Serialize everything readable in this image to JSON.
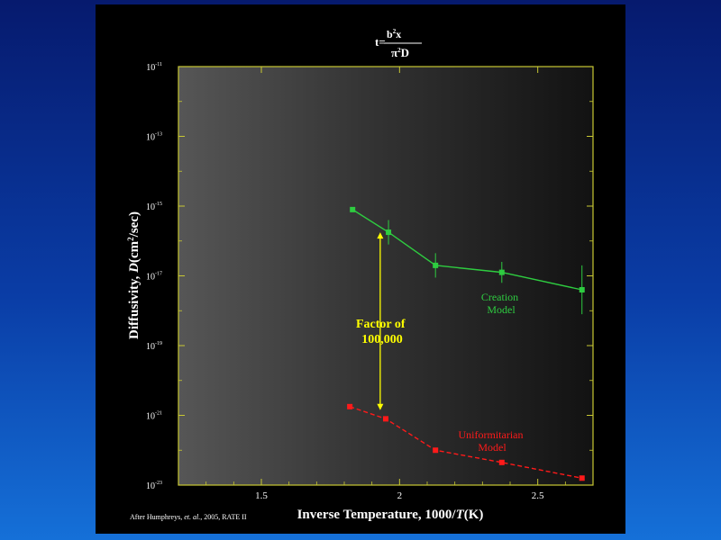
{
  "formula": {
    "lhs": "t=",
    "numerator": "b",
    "numerator_sup": "2",
    "numerator_tail": "x",
    "denominator": "π",
    "denominator_sup": "2",
    "denominator_tail": "D"
  },
  "citation": {
    "before": "After Humphreys, ",
    "italic": "et. al.",
    "after": ", 2005, RATE II"
  },
  "colors": {
    "creation": "#2ecc40",
    "uniformitarian": "#ff1a1a",
    "arrow": "#ffff00",
    "frame": "#c8c832"
  },
  "chart_data": {
    "type": "line",
    "title": "",
    "xlabel": "Inverse Temperature, 1000/T(K)",
    "xlabel_parts": {
      "main": "Inverse Temperature, 1000/",
      "italic": "T",
      "tail": "(K)"
    },
    "ylabel": "Diffusivity, D(cm²/sec)",
    "ylabel_parts": {
      "main": "Diffusivity, ",
      "italic": "D",
      "tail": "(cm",
      "sup": "2",
      "end": "/sec)"
    },
    "xlim": [
      1.2,
      2.7
    ],
    "x_ticks": [
      "1.5",
      "2",
      "2.5"
    ],
    "x_tick_values": [
      1.5,
      2,
      2.5
    ],
    "y_scale": "log",
    "ylim": [
      -23,
      -11
    ],
    "y_ticks": [
      {
        "base": "10",
        "exp": "-11",
        "value": -11
      },
      {
        "base": "10",
        "exp": "-13",
        "value": -13
      },
      {
        "base": "10",
        "exp": "-15",
        "value": -15
      },
      {
        "base": "10",
        "exp": "-17",
        "value": -17
      },
      {
        "base": "10",
        "exp": "-19",
        "value": -19
      },
      {
        "base": "10",
        "exp": "-21",
        "value": -21
      },
      {
        "base": "10",
        "exp": "-23",
        "value": -23
      }
    ],
    "grid": false,
    "series": [
      {
        "name": "Creation Model",
        "label_lines": [
          "Creation",
          "Model"
        ],
        "line_style": "solid",
        "points": [
          {
            "x": 1.83,
            "log10_y": -15.1,
            "err": 0
          },
          {
            "x": 1.96,
            "log10_y": -15.75,
            "err": 0.35
          },
          {
            "x": 2.13,
            "log10_y": -16.7,
            "err": 0.35
          },
          {
            "x": 2.37,
            "log10_y": -16.9,
            "err": 0.3
          },
          {
            "x": 2.66,
            "log10_y": -17.4,
            "err": 0.7
          }
        ]
      },
      {
        "name": "Uniformitarian Model",
        "label_lines": [
          "Uniformitarian",
          "Model"
        ],
        "line_style": "dashed",
        "points": [
          {
            "x": 1.82,
            "log10_y": -20.75,
            "err": 0
          },
          {
            "x": 1.95,
            "log10_y": -21.1,
            "err": 0
          },
          {
            "x": 2.13,
            "log10_y": -22.0,
            "err": 0
          },
          {
            "x": 2.37,
            "log10_y": -22.35,
            "err": 0
          },
          {
            "x": 2.66,
            "log10_y": -22.8,
            "err": 0
          }
        ]
      }
    ],
    "annotation": {
      "lines": [
        "Factor of",
        "100,000"
      ],
      "arrow_x": 1.93,
      "arrow_from_log10_y": -15.75,
      "arrow_to_log10_y": -20.85
    }
  }
}
